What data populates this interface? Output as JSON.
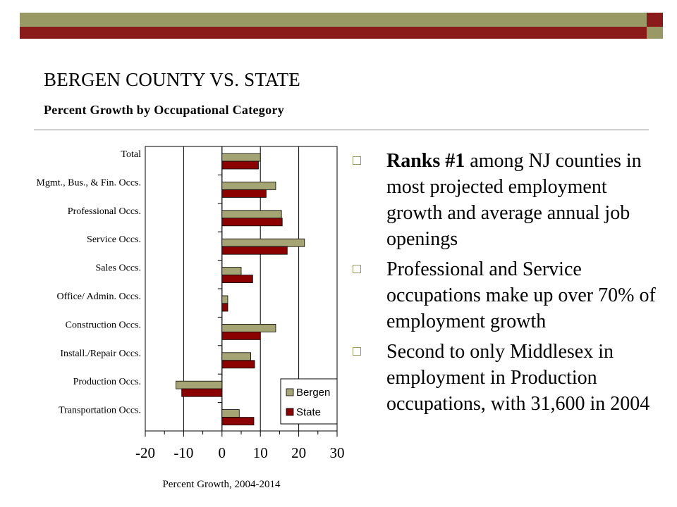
{
  "colors": {
    "olive": "#999966",
    "maroon": "#8b1a1a",
    "bergen_bar": "#a4a475",
    "state_bar": "#8b0000"
  },
  "header": {
    "title": "BERGEN COUNTY VS. STATE",
    "subtitle": "Percent Growth by Occupational Category"
  },
  "bullets": [
    {
      "bold": "Ranks #1",
      "text": " among NJ counties in most projected employment growth and average annual job openings"
    },
    {
      "bold": "",
      "text": "Professional and Service occupations make up over 70% of employment growth"
    },
    {
      "bold": "",
      "text": "Second to only Middlesex in employment in Production occupations, with 31,600 in 2004"
    }
  ],
  "chart_data": {
    "type": "bar",
    "orientation": "horizontal",
    "categories": [
      "Total",
      "Mgmt., Bus., & Fin. Occs.",
      "Professional Occs.",
      "Service Occs.",
      "Sales Occs.",
      "Office/ Admin. Occs.",
      "Construction Occs.",
      "Install./Repair Occs.",
      "Production Occs.",
      "Transportation Occs."
    ],
    "series": [
      {
        "name": "Bergen",
        "values": [
          10,
          14,
          15.5,
          21.5,
          5,
          1.5,
          14,
          7.5,
          -12,
          4.5
        ]
      },
      {
        "name": "State",
        "values": [
          9.5,
          11.5,
          15.7,
          17,
          8,
          1.5,
          10,
          8.5,
          -10.5,
          8.3
        ]
      }
    ],
    "xlabel": "Percent Growth, 2004-2014",
    "xlim": [
      -20,
      30
    ],
    "xticks": [
      "-20",
      "-10",
      "0",
      "10",
      "20",
      "30"
    ],
    "grid": "vertical",
    "legend": "bottom-right"
  }
}
